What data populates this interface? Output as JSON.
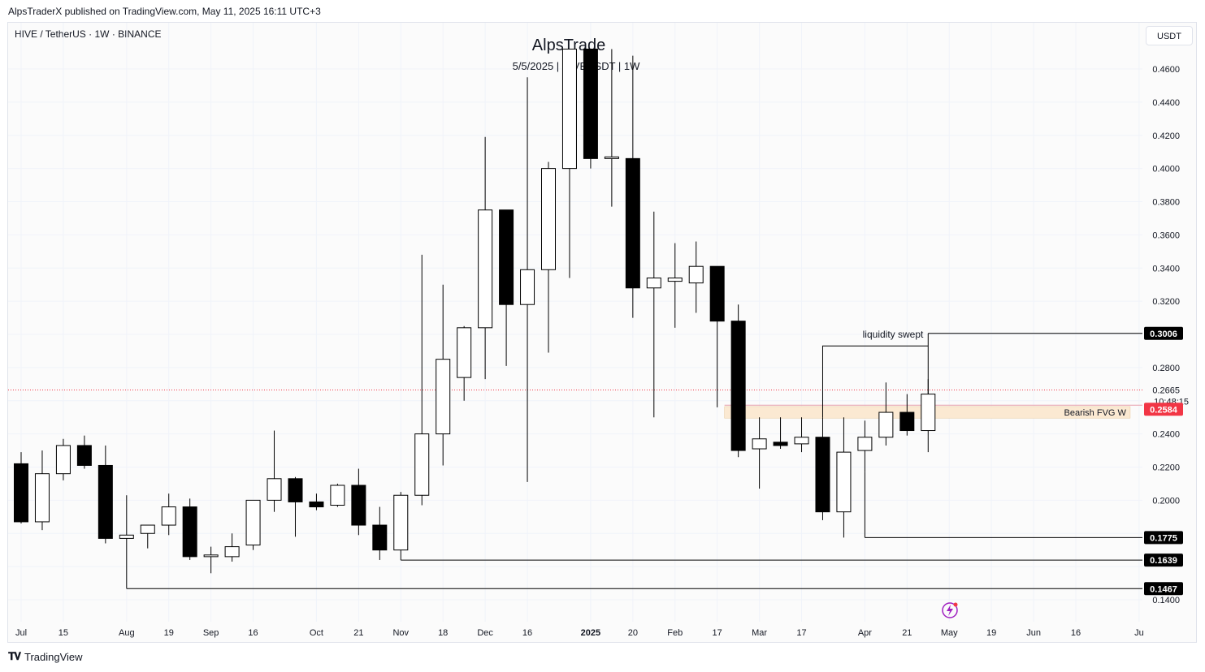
{
  "header": {
    "published": "AlpsTraderX published on TradingView.com, May 11, 2025 16:11 UTC+3",
    "symbol": "HIVE / TetherUS · 1W · BINANCE",
    "currency": "USDT"
  },
  "watermark": {
    "title": "AlpsTrade",
    "subtitle": "5/5/2025 | HIVEUSDT | 1W"
  },
  "footer": {
    "brand": "TradingView",
    "logo": "tradingview-logo-icon"
  },
  "colors": {
    "bull_body": "#ffffff",
    "bear_body": "#000000",
    "wick": "#000000",
    "fvg_fill": "#fbe9d2",
    "current_price": "#f23645",
    "grid": "#f0f3fa",
    "text": "#131722"
  },
  "chart_data": {
    "type": "candlestick",
    "timeframe": "1W",
    "y_axis": {
      "side": "right",
      "range": [
        0.134,
        0.472
      ],
      "ticks": [
        "0.4600",
        "0.4400",
        "0.4200",
        "0.4000",
        "0.3800",
        "0.3600",
        "0.3400",
        "0.3200",
        "0.2800",
        "0.2400",
        "0.2200",
        "0.2000",
        "0.1400"
      ]
    },
    "x_axis": {
      "labels": [
        {
          "i": 0,
          "text": "Jul"
        },
        {
          "i": 2,
          "text": "15"
        },
        {
          "i": 5,
          "text": "Aug"
        },
        {
          "i": 7,
          "text": "19"
        },
        {
          "i": 9,
          "text": "Sep"
        },
        {
          "i": 11,
          "text": "16"
        },
        {
          "i": 14,
          "text": "Oct"
        },
        {
          "i": 16,
          "text": "21"
        },
        {
          "i": 18,
          "text": "Nov"
        },
        {
          "i": 20,
          "text": "18"
        },
        {
          "i": 22,
          "text": "Dec"
        },
        {
          "i": 24,
          "text": "16"
        },
        {
          "i": 27,
          "text": "2025",
          "bold": true
        },
        {
          "i": 29,
          "text": "20"
        },
        {
          "i": 31,
          "text": "Feb"
        },
        {
          "i": 33,
          "text": "17"
        },
        {
          "i": 35,
          "text": "Mar"
        },
        {
          "i": 37,
          "text": "17"
        },
        {
          "i": 40,
          "text": "Apr"
        },
        {
          "i": 42,
          "text": "21"
        },
        {
          "i": 44,
          "text": "May"
        },
        {
          "i": 46,
          "text": "19"
        },
        {
          "i": 48,
          "text": "Jun"
        },
        {
          "i": 50,
          "text": "16"
        },
        {
          "i": 53,
          "text": "Ju"
        }
      ]
    },
    "candles": [
      {
        "o": 0.222,
        "h": 0.229,
        "l": 0.186,
        "c": 0.187
      },
      {
        "o": 0.187,
        "h": 0.23,
        "l": 0.182,
        "c": 0.216
      },
      {
        "o": 0.216,
        "h": 0.237,
        "l": 0.212,
        "c": 0.233
      },
      {
        "o": 0.233,
        "h": 0.239,
        "l": 0.219,
        "c": 0.221
      },
      {
        "o": 0.221,
        "h": 0.233,
        "l": 0.174,
        "c": 0.177
      },
      {
        "o": 0.177,
        "h": 0.203,
        "l": 0.147,
        "c": 0.179
      },
      {
        "o": 0.18,
        "h": 0.185,
        "l": 0.171,
        "c": 0.185
      },
      {
        "o": 0.185,
        "h": 0.204,
        "l": 0.179,
        "c": 0.196
      },
      {
        "o": 0.196,
        "h": 0.201,
        "l": 0.164,
        "c": 0.166
      },
      {
        "o": 0.166,
        "h": 0.172,
        "l": 0.156,
        "c": 0.167
      },
      {
        "o": 0.166,
        "h": 0.18,
        "l": 0.163,
        "c": 0.172
      },
      {
        "o": 0.173,
        "h": 0.2,
        "l": 0.17,
        "c": 0.2
      },
      {
        "o": 0.2,
        "h": 0.242,
        "l": 0.193,
        "c": 0.213
      },
      {
        "o": 0.213,
        "h": 0.214,
        "l": 0.178,
        "c": 0.199
      },
      {
        "o": 0.199,
        "h": 0.204,
        "l": 0.194,
        "c": 0.196
      },
      {
        "o": 0.197,
        "h": 0.21,
        "l": 0.196,
        "c": 0.209
      },
      {
        "o": 0.209,
        "h": 0.219,
        "l": 0.179,
        "c": 0.185
      },
      {
        "o": 0.185,
        "h": 0.196,
        "l": 0.164,
        "c": 0.17
      },
      {
        "o": 0.17,
        "h": 0.205,
        "l": 0.1639,
        "c": 0.203
      },
      {
        "o": 0.203,
        "h": 0.348,
        "l": 0.197,
        "c": 0.24
      },
      {
        "o": 0.24,
        "h": 0.33,
        "l": 0.221,
        "c": 0.285
      },
      {
        "o": 0.274,
        "h": 0.305,
        "l": 0.26,
        "c": 0.304
      },
      {
        "o": 0.304,
        "h": 0.419,
        "l": 0.273,
        "c": 0.375
      },
      {
        "o": 0.375,
        "h": 0.374,
        "l": 0.281,
        "c": 0.318
      },
      {
        "o": 0.318,
        "h": 0.455,
        "l": 0.211,
        "c": 0.339
      },
      {
        "o": 0.339,
        "h": 0.404,
        "l": 0.289,
        "c": 0.4
      },
      {
        "o": 0.4,
        "h": 0.472,
        "l": 0.334,
        "c": 0.472
      },
      {
        "o": 0.472,
        "h": 0.472,
        "l": 0.4,
        "c": 0.406
      },
      {
        "o": 0.406,
        "h": 0.472,
        "l": 0.377,
        "c": 0.407
      },
      {
        "o": 0.406,
        "h": 0.468,
        "l": 0.31,
        "c": 0.328
      },
      {
        "o": 0.328,
        "h": 0.374,
        "l": 0.25,
        "c": 0.334
      },
      {
        "o": 0.332,
        "h": 0.355,
        "l": 0.304,
        "c": 0.334
      },
      {
        "o": 0.331,
        "h": 0.356,
        "l": 0.313,
        "c": 0.341
      },
      {
        "o": 0.341,
        "h": 0.341,
        "l": 0.256,
        "c": 0.308
      },
      {
        "o": 0.308,
        "h": 0.318,
        "l": 0.226,
        "c": 0.23
      },
      {
        "o": 0.231,
        "h": 0.25,
        "l": 0.207,
        "c": 0.237
      },
      {
        "o": 0.235,
        "h": 0.25,
        "l": 0.231,
        "c": 0.233
      },
      {
        "o": 0.234,
        "h": 0.25,
        "l": 0.229,
        "c": 0.238
      },
      {
        "o": 0.238,
        "h": 0.25,
        "l": 0.188,
        "c": 0.193
      },
      {
        "o": 0.193,
        "h": 0.25,
        "l": 0.1775,
        "c": 0.229
      },
      {
        "o": 0.23,
        "h": 0.248,
        "l": 0.217,
        "c": 0.238
      },
      {
        "o": 0.238,
        "h": 0.271,
        "l": 0.233,
        "c": 0.253
      },
      {
        "o": 0.253,
        "h": 0.264,
        "l": 0.239,
        "c": 0.242
      },
      {
        "o": 0.242,
        "h": 0.273,
        "l": 0.229,
        "c": 0.264
      }
    ],
    "horizontal_levels": [
      {
        "label": "0.3006",
        "price": 0.3006,
        "from_index": 43
      },
      {
        "label": "0.1775",
        "price": 0.1775,
        "from_index": 40
      },
      {
        "label": "0.1639",
        "price": 0.1639,
        "from_index": 18
      },
      {
        "label": "0.1467",
        "price": 0.1467,
        "from_index": 5
      }
    ],
    "liquidity_lines": [
      {
        "price": 0.293,
        "from_index": 38,
        "to_index": 43
      },
      {
        "price": 0.3006,
        "from_index": 43,
        "to_index": 43
      }
    ],
    "fvg_zone": {
      "label": "Bearish FVG W",
      "top": 0.2565,
      "bottom": 0.2495,
      "from_index": 34,
      "to_index": 52
    },
    "annotations": [
      {
        "text": "liquidity swept",
        "index": 41.5,
        "price": 0.298
      }
    ],
    "current_price": {
      "value": "0.2584",
      "countdown": "10:48:15",
      "last_close": "0.2665",
      "price_line": 0.2665,
      "red_line": 0.2573
    }
  }
}
